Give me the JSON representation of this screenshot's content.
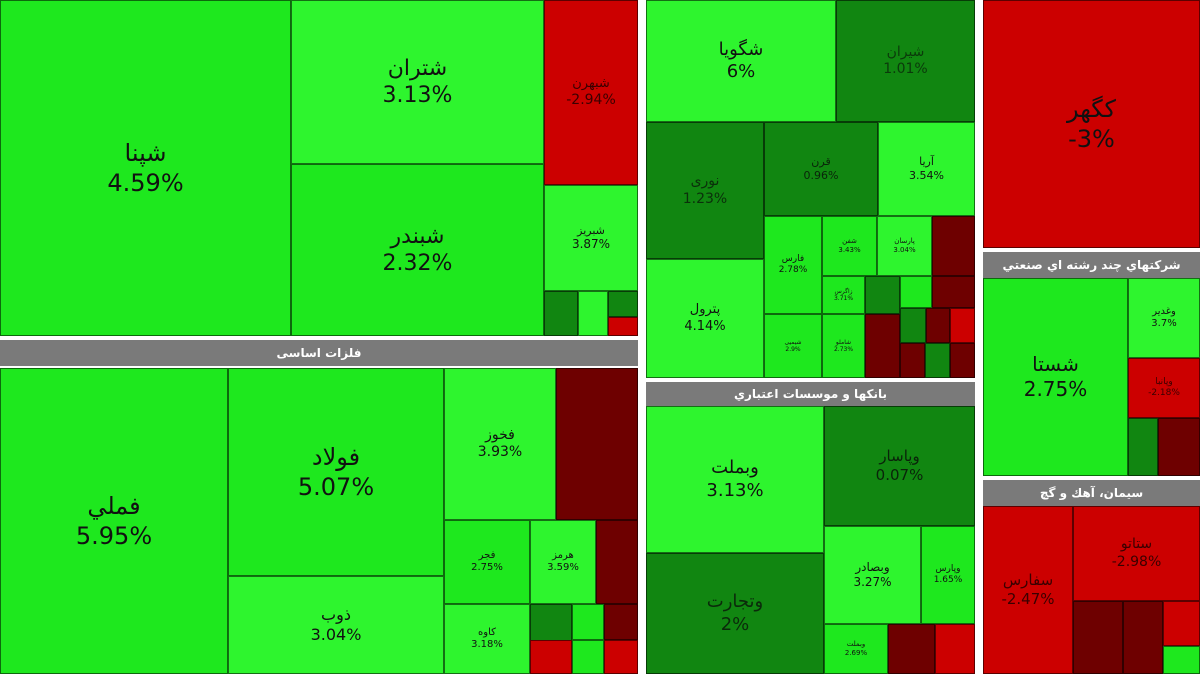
{
  "chart_data": {
    "type": "treemap",
    "color_scale": {
      "positive_strong": "#1ee81e",
      "positive_light": "#2ef52e",
      "positive_dark": "#118611",
      "negative": "#cc0000",
      "negative_dark": "#6e0000"
    },
    "sectors": [
      {
        "name": "",
        "items": [
          {
            "name": "شپنا",
            "value": "4.59%"
          },
          {
            "name": "شتران",
            "value": "3.13%"
          },
          {
            "name": "شبندر",
            "value": "2.32%"
          },
          {
            "name": "شبهرن",
            "value": "-2.94%"
          },
          {
            "name": "شبریز",
            "value": "3.87%"
          }
        ]
      },
      {
        "name": "فلزات اساسی",
        "items": [
          {
            "name": "فملي",
            "value": "5.95%"
          },
          {
            "name": "فولاد",
            "value": "5.07%"
          },
          {
            "name": "ذوب",
            "value": "3.04%"
          },
          {
            "name": "فخوز",
            "value": "3.93%"
          },
          {
            "name": "فجر",
            "value": "2.75%"
          },
          {
            "name": "هرمز",
            "value": "3.59%"
          },
          {
            "name": "کاوه",
            "value": "3.18%"
          }
        ]
      },
      {
        "name": "",
        "items": [
          {
            "name": "شگویا",
            "value": "6%"
          },
          {
            "name": "شیران",
            "value": "1.01%"
          },
          {
            "name": "نوری",
            "value": "1.23%"
          },
          {
            "name": "آریا",
            "value": "3.54%"
          },
          {
            "name": "فارس",
            "value": "2.78%"
          },
          {
            "name": "پترول",
            "value": "4.14%"
          },
          {
            "name": "قرن",
            "value": "0.96%"
          },
          {
            "name": "شفن",
            "value": "3.43%"
          },
          {
            "name": "پارسان",
            "value": "3.04%"
          },
          {
            "name": "شیمیی",
            "value": "2.9%"
          },
          {
            "name": "شاملو",
            "value": "2.73%"
          },
          {
            "name": "زاگرس",
            "value": "3.71%"
          }
        ]
      },
      {
        "name": "بانکها و موسسات اعتباري",
        "items": [
          {
            "name": "وبملت",
            "value": "3.13%"
          },
          {
            "name": "وتجارت",
            "value": "2%"
          },
          {
            "name": "وپاسار",
            "value": "0.07%"
          },
          {
            "name": "وبصادر",
            "value": "3.27%"
          },
          {
            "name": "وپارس",
            "value": "1.65%"
          },
          {
            "name": "وبملت",
            "value": "2.69%"
          }
        ]
      },
      {
        "name": "",
        "items": [
          {
            "name": "کگهر",
            "value": "-3%"
          }
        ]
      },
      {
        "name": "شرکتهاي چند رشته اي صنعتي",
        "items": [
          {
            "name": "شستا",
            "value": "2.75%"
          },
          {
            "name": "وغدیر",
            "value": "3.7%"
          },
          {
            "name": "وپانبا",
            "value": "-2.18%"
          }
        ]
      },
      {
        "name": "سیمان، آهك و گچ",
        "items": [
          {
            "name": "سفارس",
            "value": "-2.47%"
          },
          {
            "name": "ستاتو",
            "value": "-2.98%"
          }
        ]
      }
    ]
  }
}
